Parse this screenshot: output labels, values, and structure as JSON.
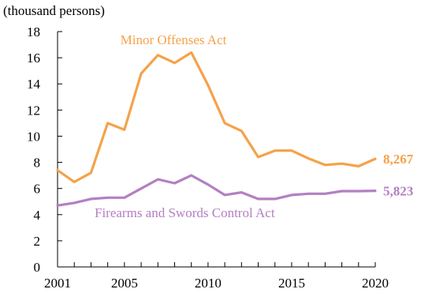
{
  "chart_data": {
    "type": "line",
    "ylabel": "(thousand persons)",
    "xlabel": "",
    "ylim": [
      0,
      18
    ],
    "xlim": [
      2001,
      2020
    ],
    "yticks": [
      0,
      2,
      4,
      6,
      8,
      10,
      12,
      14,
      16,
      18
    ],
    "xtick_labels": [
      2001,
      2005,
      2010,
      2015,
      2020
    ],
    "grid": false,
    "x": [
      2001,
      2002,
      2003,
      2004,
      2005,
      2006,
      2007,
      2008,
      2009,
      2010,
      2011,
      2012,
      2013,
      2014,
      2015,
      2016,
      2017,
      2018,
      2019,
      2020
    ],
    "series": [
      {
        "name": "Minor Offenses Act",
        "color": "#f5a24a",
        "end_label": "8,267",
        "values": [
          7.4,
          6.5,
          7.2,
          11.0,
          10.5,
          14.8,
          16.2,
          15.6,
          16.4,
          13.9,
          11.0,
          10.4,
          8.4,
          8.9,
          8.9,
          8.3,
          7.8,
          7.9,
          7.7,
          8.267
        ]
      },
      {
        "name": "Firearms and Swords Control Act",
        "color": "#b47fc2",
        "end_label": "5,823",
        "values": [
          4.7,
          4.9,
          5.2,
          5.3,
          5.3,
          6.0,
          6.7,
          6.4,
          7.0,
          6.3,
          5.5,
          5.7,
          5.2,
          5.2,
          5.5,
          5.6,
          5.6,
          5.8,
          5.8,
          5.823
        ]
      }
    ]
  }
}
